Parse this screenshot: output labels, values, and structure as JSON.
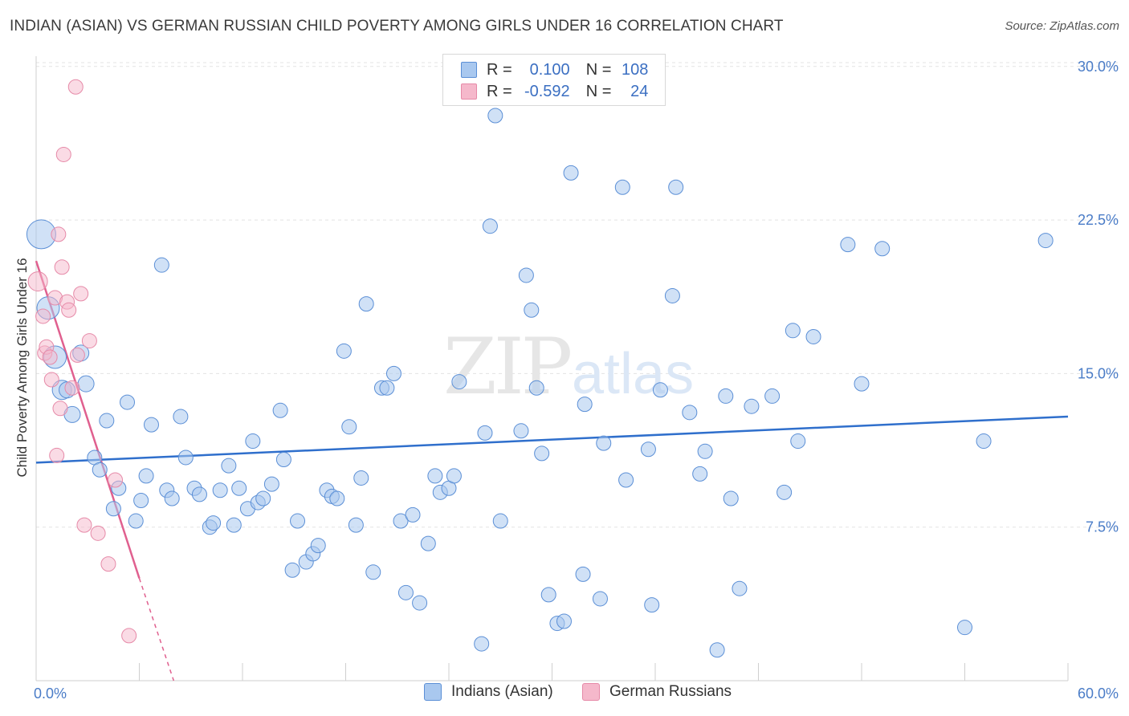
{
  "title": "INDIAN (ASIAN) VS GERMAN RUSSIAN CHILD POVERTY AMONG GIRLS UNDER 16 CORRELATION CHART",
  "source": "Source: ZipAtlas.com",
  "watermark": {
    "zip": "ZIP",
    "atlas": "atlas"
  },
  "legend": [
    {
      "r_label": "R =",
      "r_value": "0.100",
      "n_label": "N =",
      "n_value": "108",
      "color": "#a9c8ef",
      "border": "#5b8fd6"
    },
    {
      "r_label": "R =",
      "r_value": "-0.592",
      "n_label": "N =",
      "n_value": "24",
      "color": "#f5b8cb",
      "border": "#e68aa8"
    }
  ],
  "chart_data": {
    "type": "scatter",
    "title": "INDIAN (ASIAN) VS GERMAN RUSSIAN CHILD POVERTY AMONG GIRLS UNDER 16 CORRELATION CHART",
    "xlabel": "",
    "ylabel": "Child Poverty Among Girls Under 16",
    "xlim": [
      0,
      60
    ],
    "ylim": [
      0,
      30.5
    ],
    "x_tick_labels": [
      "0.0%",
      "60.0%"
    ],
    "y_ticks": [
      7.5,
      15.0,
      22.5,
      30.0
    ],
    "y_tick_labels": [
      "7.5%",
      "15.0%",
      "22.5%",
      "30.0%"
    ],
    "grid": "horizontal dashed",
    "legend_position": "top-center",
    "series": [
      {
        "name": "Indians (Asian)",
        "color": "#a9c8ef",
        "stroke": "#5b8fd6",
        "trend": {
          "x": [
            0,
            60
          ],
          "y": [
            10.65,
            12.9
          ],
          "color": "#2f6fcc"
        },
        "points": [
          [
            0.3,
            21.8,
            18
          ],
          [
            0.7,
            18.2,
            14
          ],
          [
            1.1,
            15.8,
            14
          ],
          [
            1.5,
            14.2,
            12
          ],
          [
            1.8,
            14.2,
            10
          ],
          [
            2.1,
            13.0,
            10
          ],
          [
            2.6,
            16.0,
            10
          ],
          [
            2.9,
            14.5,
            10
          ],
          [
            3.4,
            10.9,
            9
          ],
          [
            3.7,
            10.3,
            9
          ],
          [
            4.1,
            12.7,
            9
          ],
          [
            4.5,
            8.4,
            9
          ],
          [
            4.8,
            9.4,
            9
          ],
          [
            5.3,
            13.6,
            9
          ],
          [
            5.8,
            7.8,
            9
          ],
          [
            6.1,
            8.8,
            9
          ],
          [
            6.4,
            10.0,
            9
          ],
          [
            6.7,
            12.5,
            9
          ],
          [
            7.3,
            20.3,
            9
          ],
          [
            7.6,
            9.3,
            9
          ],
          [
            7.9,
            8.9,
            9
          ],
          [
            8.4,
            12.9,
            9
          ],
          [
            8.7,
            10.9,
            9
          ],
          [
            9.2,
            9.4,
            9
          ],
          [
            9.5,
            9.1,
            9
          ],
          [
            10.1,
            7.5,
            9
          ],
          [
            10.3,
            7.7,
            9
          ],
          [
            10.7,
            9.3,
            9
          ],
          [
            11.2,
            10.5,
            9
          ],
          [
            11.5,
            7.6,
            9
          ],
          [
            11.8,
            9.4,
            9
          ],
          [
            12.3,
            8.4,
            9
          ],
          [
            12.6,
            11.7,
            9
          ],
          [
            12.9,
            8.7,
            9
          ],
          [
            13.2,
            8.9,
            9
          ],
          [
            13.7,
            9.6,
            9
          ],
          [
            14.2,
            13.2,
            9
          ],
          [
            14.4,
            10.8,
            9
          ],
          [
            14.9,
            5.4,
            9
          ],
          [
            15.2,
            7.8,
            9
          ],
          [
            15.7,
            5.8,
            9
          ],
          [
            16.1,
            6.2,
            9
          ],
          [
            16.4,
            6.6,
            9
          ],
          [
            16.9,
            9.3,
            9
          ],
          [
            17.2,
            9.0,
            9
          ],
          [
            17.5,
            8.9,
            9
          ],
          [
            17.9,
            16.1,
            9
          ],
          [
            18.2,
            12.4,
            9
          ],
          [
            18.6,
            7.6,
            9
          ],
          [
            18.9,
            9.9,
            9
          ],
          [
            19.2,
            18.4,
            9
          ],
          [
            19.6,
            5.3,
            9
          ],
          [
            20.1,
            14.3,
            9
          ],
          [
            20.4,
            14.3,
            9
          ],
          [
            20.8,
            15.0,
            9
          ],
          [
            21.2,
            7.8,
            9
          ],
          [
            21.5,
            4.3,
            9
          ],
          [
            21.9,
            8.1,
            9
          ],
          [
            22.3,
            3.8,
            9
          ],
          [
            22.8,
            6.7,
            9
          ],
          [
            23.2,
            10.0,
            9
          ],
          [
            23.5,
            9.2,
            9
          ],
          [
            24.0,
            9.4,
            9
          ],
          [
            24.3,
            10.0,
            9
          ],
          [
            24.6,
            14.6,
            9
          ],
          [
            25.9,
            1.8,
            9
          ],
          [
            26.1,
            12.1,
            9
          ],
          [
            26.4,
            22.2,
            9
          ],
          [
            26.7,
            27.6,
            9
          ],
          [
            27.0,
            7.8,
            9
          ],
          [
            28.2,
            12.2,
            9
          ],
          [
            28.5,
            19.8,
            9
          ],
          [
            28.8,
            18.1,
            9
          ],
          [
            29.1,
            14.3,
            9
          ],
          [
            29.4,
            11.1,
            9
          ],
          [
            29.8,
            4.2,
            9
          ],
          [
            30.3,
            2.8,
            9
          ],
          [
            30.7,
            2.9,
            9
          ],
          [
            31.1,
            24.8,
            9
          ],
          [
            31.8,
            5.2,
            9
          ],
          [
            31.9,
            13.5,
            9
          ],
          [
            32.8,
            4.0,
            9
          ],
          [
            33.0,
            11.6,
            9
          ],
          [
            34.1,
            24.1,
            9
          ],
          [
            34.3,
            9.8,
            9
          ],
          [
            35.6,
            11.3,
            9
          ],
          [
            35.8,
            3.7,
            9
          ],
          [
            36.3,
            14.2,
            9
          ],
          [
            37.0,
            18.8,
            9
          ],
          [
            37.2,
            24.1,
            9
          ],
          [
            38.0,
            13.1,
            9
          ],
          [
            38.6,
            10.1,
            9
          ],
          [
            38.9,
            11.2,
            9
          ],
          [
            39.6,
            1.5,
            9
          ],
          [
            40.1,
            13.9,
            9
          ],
          [
            40.4,
            8.9,
            9
          ],
          [
            40.9,
            4.5,
            9
          ],
          [
            41.6,
            13.4,
            9
          ],
          [
            42.8,
            13.9,
            9
          ],
          [
            43.5,
            9.2,
            9
          ],
          [
            44.0,
            17.1,
            9
          ],
          [
            44.3,
            11.7,
            9
          ],
          [
            45.2,
            16.8,
            9
          ],
          [
            47.2,
            21.3,
            9
          ],
          [
            48.0,
            14.5,
            9
          ],
          [
            49.2,
            21.1,
            9
          ],
          [
            54.0,
            2.6,
            9
          ],
          [
            55.1,
            11.7,
            9
          ],
          [
            58.7,
            21.5,
            9
          ]
        ]
      },
      {
        "name": "German Russians",
        "color": "#f5b8cb",
        "stroke": "#e68aa8",
        "trend": {
          "x": [
            0,
            6.0
          ],
          "y": [
            20.5,
            5.0
          ],
          "dash_to": [
            8.0,
            -0.4
          ],
          "color": "#e0608f"
        },
        "points": [
          [
            0.1,
            19.5,
            12
          ],
          [
            0.4,
            17.8,
            9
          ],
          [
            0.5,
            16.0,
            9
          ],
          [
            0.6,
            16.3,
            9
          ],
          [
            0.8,
            15.8,
            9
          ],
          [
            0.9,
            14.7,
            9
          ],
          [
            1.1,
            18.7,
            9
          ],
          [
            1.2,
            11.0,
            9
          ],
          [
            1.3,
            21.8,
            9
          ],
          [
            1.4,
            13.3,
            9
          ],
          [
            1.5,
            20.2,
            9
          ],
          [
            1.6,
            25.7,
            9
          ],
          [
            1.8,
            18.5,
            9
          ],
          [
            1.9,
            18.1,
            9
          ],
          [
            2.1,
            14.3,
            9
          ],
          [
            2.3,
            29.0,
            9
          ],
          [
            2.4,
            15.9,
            9
          ],
          [
            2.6,
            18.9,
            9
          ],
          [
            2.8,
            7.6,
            9
          ],
          [
            3.1,
            16.6,
            9
          ],
          [
            3.6,
            7.2,
            9
          ],
          [
            4.2,
            5.7,
            9
          ],
          [
            4.6,
            9.8,
            9
          ],
          [
            5.4,
            2.2,
            9
          ]
        ]
      }
    ]
  },
  "bottom_legend": [
    {
      "label": "Indians (Asian)",
      "color": "#a9c8ef",
      "border": "#5b8fd6"
    },
    {
      "label": "German Russians",
      "color": "#f5b8cb",
      "border": "#e68aa8"
    }
  ]
}
